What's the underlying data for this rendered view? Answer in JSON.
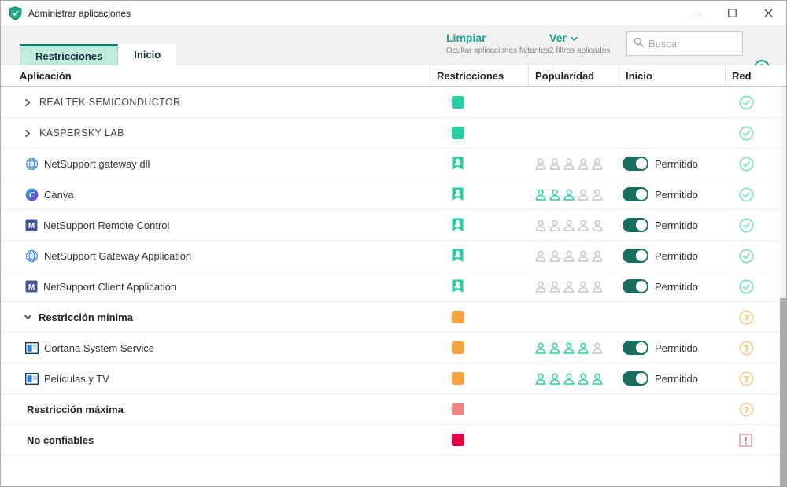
{
  "window": {
    "title": "Administrar aplicaciones"
  },
  "tabs": [
    {
      "label": "Restricciones",
      "active": true
    },
    {
      "label": "Inicio",
      "active": false
    }
  ],
  "toolbar": {
    "limpiar": {
      "label": "Limpiar",
      "sublabel": "Ocultar aplicaciones faltantes"
    },
    "ver": {
      "label": "Ver",
      "sublabel": "2 filtros aplicados"
    },
    "search_placeholder": "Buscar",
    "help_glyph": "?"
  },
  "columns": [
    "Aplicación",
    "Restricciones",
    "Popularidad",
    "Inicio",
    "Red"
  ],
  "colors": {
    "teal": "#26CDA7",
    "orange": "#F7A43A",
    "salmon": "#EF8481",
    "red": "#E30045",
    "toggle_on": "#166D60",
    "link_green": "#17A38C",
    "check": "#7FE0C4",
    "question_border": "#F6CD96",
    "question_glyph": "#EFA73E",
    "alert_border": "#F5AEBE",
    "alert_glyph": "#E6536E",
    "people_filled": "#2BCBA4",
    "people_empty": "#C6C6C6",
    "tab_active_bg": "#BEEBDC",
    "tab_active_border": "#107C6C"
  },
  "rows": [
    {
      "kind": "group",
      "chevron": "right",
      "caps": true,
      "bold": false,
      "icon": null,
      "label": "REALTEK SEMICONDUCTOR",
      "restriction": {
        "shape": "square",
        "color": "teal"
      },
      "popularity": null,
      "start": null,
      "network": "allowed"
    },
    {
      "kind": "group",
      "chevron": "right",
      "caps": true,
      "bold": false,
      "icon": null,
      "label": "KASPERSKY LAB",
      "restriction": {
        "shape": "square",
        "color": "teal"
      },
      "popularity": null,
      "start": null,
      "network": "allowed"
    },
    {
      "kind": "app",
      "chevron": "none",
      "caps": false,
      "bold": false,
      "icon": "globe",
      "label": "NetSupport gateway dll",
      "restriction": {
        "shape": "badge",
        "color": "teal"
      },
      "popularity": 0,
      "start": "Permitido",
      "network": "allowed"
    },
    {
      "kind": "app",
      "chevron": "none",
      "caps": false,
      "bold": false,
      "icon": "canva",
      "label": "Canva",
      "restriction": {
        "shape": "badge",
        "color": "teal"
      },
      "popularity": 3,
      "start": "Permitido",
      "network": "allowed"
    },
    {
      "kind": "app",
      "chevron": "none",
      "caps": false,
      "bold": false,
      "icon": "m",
      "label": "NetSupport Remote Control",
      "restriction": {
        "shape": "badge",
        "color": "teal"
      },
      "popularity": 0,
      "start": "Permitido",
      "network": "allowed"
    },
    {
      "kind": "app",
      "chevron": "none",
      "caps": false,
      "bold": false,
      "icon": "globe",
      "label": "NetSupport Gateway Application",
      "restriction": {
        "shape": "badge",
        "color": "teal"
      },
      "popularity": 0,
      "start": "Permitido",
      "network": "allowed"
    },
    {
      "kind": "app",
      "chevron": "none",
      "caps": false,
      "bold": false,
      "icon": "m",
      "label": "NetSupport Client Application",
      "restriction": {
        "shape": "badge",
        "color": "teal"
      },
      "popularity": 0,
      "start": "Permitido",
      "network": "allowed"
    },
    {
      "kind": "group",
      "chevron": "down",
      "caps": false,
      "bold": true,
      "icon": null,
      "label": "Restricción mínima",
      "restriction": {
        "shape": "square",
        "color": "orange"
      },
      "popularity": null,
      "start": null,
      "network": "question"
    },
    {
      "kind": "app",
      "chevron": "none",
      "caps": false,
      "bold": false,
      "icon": "window",
      "label": "Cortana System Service",
      "restriction": {
        "shape": "square",
        "color": "orange"
      },
      "popularity": 4,
      "start": "Permitido",
      "network": "question"
    },
    {
      "kind": "app",
      "chevron": "none",
      "caps": false,
      "bold": false,
      "icon": "window",
      "label": "Películas y TV",
      "restriction": {
        "shape": "square",
        "color": "orange"
      },
      "popularity": 5,
      "start": "Permitido",
      "network": "question"
    },
    {
      "kind": "group",
      "chevron": "none",
      "caps": false,
      "bold": true,
      "icon": null,
      "label": "Restricción máxima",
      "restriction": {
        "shape": "square",
        "color": "salmon"
      },
      "popularity": null,
      "start": null,
      "network": "question"
    },
    {
      "kind": "group",
      "chevron": "none",
      "caps": false,
      "bold": true,
      "icon": null,
      "label": "No confiables",
      "restriction": {
        "shape": "square",
        "color": "red"
      },
      "popularity": null,
      "start": null,
      "network": "alert"
    }
  ]
}
